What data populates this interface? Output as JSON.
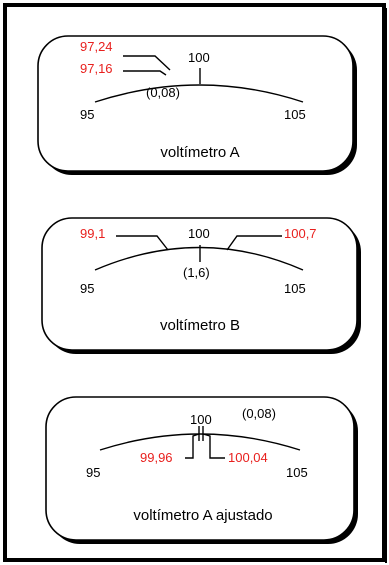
{
  "colors": {
    "reading": "#e8201e",
    "ink": "#000000",
    "border": "#000000"
  },
  "meters": [
    {
      "name": "voltímetro A",
      "scale_min": "95",
      "scale_mid": "100",
      "scale_max": "105",
      "readings": [
        "97,24",
        "97,16"
      ],
      "spread": "(0,08)"
    },
    {
      "name": "voltímetro B",
      "scale_min": "95",
      "scale_mid": "100",
      "scale_max": "105",
      "readings": [
        "99,1",
        "100,7"
      ],
      "spread": "(1,6)"
    },
    {
      "name": "voltímetro A ajustado",
      "scale_min": "95",
      "scale_mid": "100",
      "scale_max": "105",
      "readings": [
        "99,96",
        "100,04"
      ],
      "spread": "(0,08)"
    }
  ]
}
